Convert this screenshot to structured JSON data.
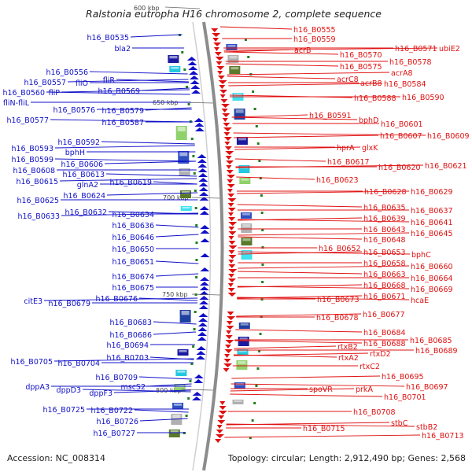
{
  "title": "Ralstonia eutropha H16 chromosome 2, complete sequence",
  "accession": "Accession: NC_008314",
  "summary": "Topology: circular; Length: 2,912,490 bp; Genes: 2,568",
  "colors": {
    "minus": "#1010c8",
    "plus": "#e01010",
    "backbone": "#8c8c8c",
    "tick": "#208020"
  },
  "ticks": [
    "600 kbp",
    "650 kbp",
    "700 kbp",
    "750 kbp",
    "800 kbp"
  ],
  "left_genes": [
    "h16_B0535",
    "bla2",
    "h16_B0556",
    "h16_B0557",
    "fliO",
    "h16_B0560",
    "fliP",
    "fliN-fliL",
    "fliR",
    "h16_B0569",
    "h16_B0576",
    "h16_B0577",
    "h16_B0579",
    "h16_B0587",
    "h16_B0592",
    "h16_B0593",
    "bphH",
    "h16_B0599",
    "h16_B0606",
    "h16_B0608",
    "h16_B0613",
    "h16_B0615",
    "glnA2",
    "h16_B0619",
    "h16_B0624",
    "h16_B0625",
    "h16_B0632",
    "h16_B0633",
    "h16_B0634",
    "h16_B0636",
    "h16_B0646",
    "h16_B0650",
    "h16_B0651",
    "h16_B0674",
    "h16_B0675",
    "h16_B0676",
    "citE3",
    "h16_B0679",
    "h16_B0683",
    "h16_B0686",
    "h16_B0694",
    "h16_B0703",
    "h16_B0705",
    "h16_B0704",
    "h16_B0709",
    "mscS2",
    "dppA3",
    "dppD3",
    "dppF3",
    "h16_B0725",
    "h16_B0722",
    "h16_B0726",
    "h16_B0727"
  ],
  "right_genes": [
    "h16_B0555",
    "h16_B0559",
    "acrB",
    "h16_B0570",
    "h16_B0571",
    "ubiE2",
    "h16_B0575",
    "h16_B0578",
    "acrA8",
    "acrC8",
    "acrB8",
    "h16_B0584",
    "h16_B0588",
    "h16_B0590",
    "h16_B0591",
    "bphD",
    "h16_B0601",
    "h16_B0607",
    "h16_B0609",
    "hprA",
    "glxK",
    "h16_B0617",
    "h16_B0620",
    "h16_B0621",
    "h16_B0623",
    "h16_B0628",
    "h16_B0629",
    "h16_B0635",
    "h16_B0637",
    "h16_B0639",
    "h16_B0641",
    "h16_B0643",
    "h16_B0645",
    "h16_B0648",
    "h16_B0652",
    "h16_B0653",
    "bphC",
    "h16_B0658",
    "h16_B0660",
    "h16_B0663",
    "h16_B0664",
    "h16_B0668",
    "h16_B0669",
    "h16_B0673",
    "h16_B0671",
    "hcaE",
    "h16_B0678",
    "h16_B0677",
    "h16_B0684",
    "h16_B0685",
    "rtxB2",
    "h16_B0688",
    "h16_B0689",
    "rtxD2",
    "rtxA2",
    "rtxC2",
    "h16_B0695",
    "h16_B0697",
    "spoVR",
    "prkA",
    "h16_B0701",
    "h16_B0708",
    "stbC",
    "stbB2",
    "h16_B0715",
    "h16_B0713"
  ]
}
